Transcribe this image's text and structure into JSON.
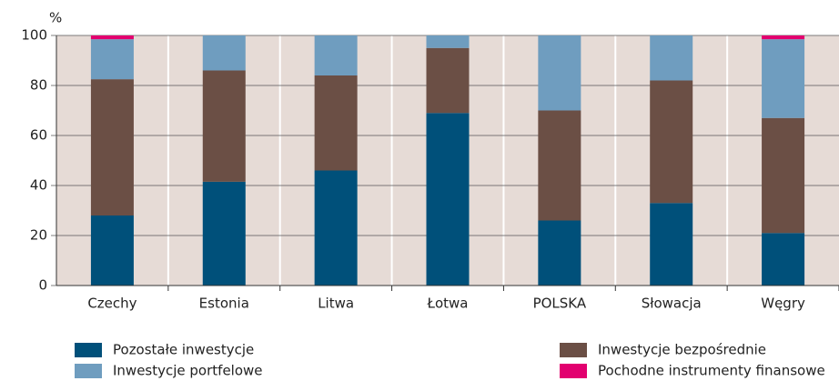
{
  "chart_data": {
    "type": "stacked_bar",
    "y_label": "%",
    "categories": [
      "Czechy",
      "Estonia",
      "Litwa",
      "Łotwa",
      "POLSKA",
      "Słowacja",
      "Węgry"
    ],
    "series": [
      {
        "name": "Pozostałe inwestycje",
        "color": "#00507a",
        "values": [
          28,
          41.5,
          46,
          69,
          26,
          33,
          21
        ]
      },
      {
        "name": "Inwestycje bezpośrednie",
        "color": "#6b4f45",
        "values": [
          54.5,
          44.5,
          38,
          26,
          44,
          49,
          46
        ]
      },
      {
        "name": "Inwestycje portfelowe",
        "color": "#6f9dbf",
        "values": [
          16,
          14,
          16,
          5,
          30,
          18,
          31.5
        ]
      },
      {
        "name": "Pochodne instrumenty finansowe",
        "color": "#e2006f",
        "values": [
          1.5,
          0,
          0,
          0,
          0,
          0,
          1.5
        ]
      }
    ],
    "ylim": [
      0,
      100
    ],
    "yticks": [
      0,
      20,
      40,
      60,
      80,
      100
    ],
    "grid": true
  }
}
